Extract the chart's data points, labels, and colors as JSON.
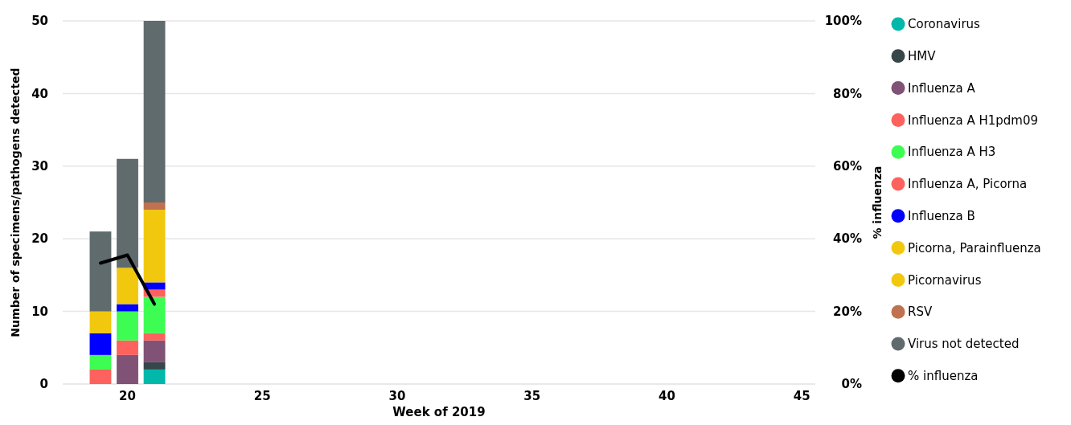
{
  "chart_data": {
    "type": "bar",
    "stacked": true,
    "xlabel": "Week of 2019",
    "ylabel": "Number of specimens/pathogens detected",
    "y2label": "% influenza",
    "x": [
      19,
      20,
      21
    ],
    "xlim": [
      17.6,
      45.5
    ],
    "xticks": [
      20,
      25,
      30,
      35,
      40,
      45
    ],
    "ylim": [
      0,
      50
    ],
    "yticks": [
      0,
      10,
      20,
      30,
      40,
      50
    ],
    "y2lim": [
      0,
      100
    ],
    "y2ticks": [
      {
        "value": 0,
        "label": "0%"
      },
      {
        "value": 20,
        "label": "20%"
      },
      {
        "value": 40,
        "label": "40%"
      },
      {
        "value": 60,
        "label": "60%"
      },
      {
        "value": 80,
        "label": "80%"
      },
      {
        "value": 100,
        "label": "100%"
      }
    ],
    "grid": "y",
    "legend": "right",
    "series": [
      {
        "name": "Coronavirus",
        "color": "#01b8aa",
        "values": [
          null,
          null,
          2
        ]
      },
      {
        "name": "HMV",
        "color": "#374649",
        "values": [
          null,
          null,
          1
        ]
      },
      {
        "name": "Influenza A",
        "color": "#7f5276",
        "values": [
          null,
          4,
          3
        ]
      },
      {
        "name": "Influenza A H1pdm09",
        "color": "#fd625e",
        "values": [
          2,
          2,
          1
        ]
      },
      {
        "name": "Influenza A H3",
        "color": "#3dfd53",
        "values": [
          2,
          4,
          5
        ]
      },
      {
        "name": "Influenza A, Picorna",
        "color": "#fd625e",
        "values": [
          null,
          null,
          1
        ]
      },
      {
        "name": "Influenza B",
        "color": "#0000ff",
        "values": [
          3,
          1,
          1
        ]
      },
      {
        "name": "Picorna, Parainfluenza",
        "color": "#f2c80f",
        "values": [
          null,
          null,
          null
        ]
      },
      {
        "name": "Picornavirus",
        "color": "#f2c80f",
        "values": [
          3,
          5,
          10
        ]
      },
      {
        "name": "RSV",
        "color": "#c0714f",
        "values": [
          null,
          null,
          1
        ]
      },
      {
        "name": "Virus not detected",
        "color": "#5f6b6d",
        "values": [
          11,
          15,
          25
        ]
      },
      {
        "name": "% influenza",
        "type": "line",
        "axis": "y2",
        "color": "#000000",
        "values": [
          33.3,
          35.5,
          22
        ]
      }
    ]
  }
}
